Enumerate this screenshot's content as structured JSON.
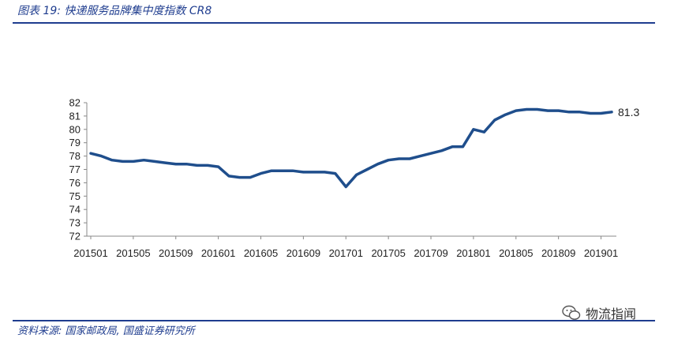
{
  "header": {
    "title": "图表 19:  快递服务品牌集中度指数 CR8"
  },
  "footer": {
    "source": "资料来源: 国家邮政局, 国盛证券研究所"
  },
  "watermark": {
    "text": "物流指闻",
    "icon": "wechat-icon"
  },
  "colors": {
    "accent": "#1f3d8f",
    "line": "#1f4e8c"
  },
  "chart_data": {
    "type": "line",
    "title": "",
    "xlabel": "",
    "ylabel": "",
    "ylim": [
      72,
      82
    ],
    "yticks": [
      72,
      73,
      74,
      75,
      76,
      77,
      78,
      79,
      80,
      81,
      82
    ],
    "xtick_labels": [
      "201501",
      "201505",
      "201509",
      "201601",
      "201605",
      "201609",
      "201701",
      "201705",
      "201709",
      "201801",
      "201805",
      "201809",
      "201901"
    ],
    "grid": false,
    "end_label": "81.3",
    "x": [
      "201501",
      "201502",
      "201503",
      "201504",
      "201505",
      "201506",
      "201507",
      "201508",
      "201509",
      "201510",
      "201511",
      "201512",
      "201601",
      "201602",
      "201603",
      "201604",
      "201605",
      "201606",
      "201607",
      "201608",
      "201609",
      "201610",
      "201611",
      "201612",
      "201701",
      "201702",
      "201703",
      "201704",
      "201705",
      "201706",
      "201707",
      "201708",
      "201709",
      "201710",
      "201711",
      "201712",
      "201801",
      "201802",
      "201803",
      "201804",
      "201805",
      "201806",
      "201807",
      "201808",
      "201809",
      "201810",
      "201811",
      "201812",
      "201901",
      "201902"
    ],
    "series": [
      {
        "values": [
          78.2,
          78.0,
          77.7,
          77.6,
          77.6,
          77.7,
          77.6,
          77.5,
          77.4,
          77.4,
          77.3,
          77.3,
          77.2,
          76.5,
          76.4,
          76.4,
          76.7,
          76.9,
          76.9,
          76.9,
          76.8,
          76.8,
          76.8,
          76.7,
          75.7,
          76.6,
          77.0,
          77.4,
          77.7,
          77.8,
          77.8,
          78.0,
          78.2,
          78.4,
          78.7,
          78.7,
          80.0,
          79.8,
          80.7,
          81.1,
          81.4,
          81.5,
          81.5,
          81.4,
          81.4,
          81.3,
          81.3,
          81.2,
          81.2,
          81.3
        ]
      }
    ]
  }
}
